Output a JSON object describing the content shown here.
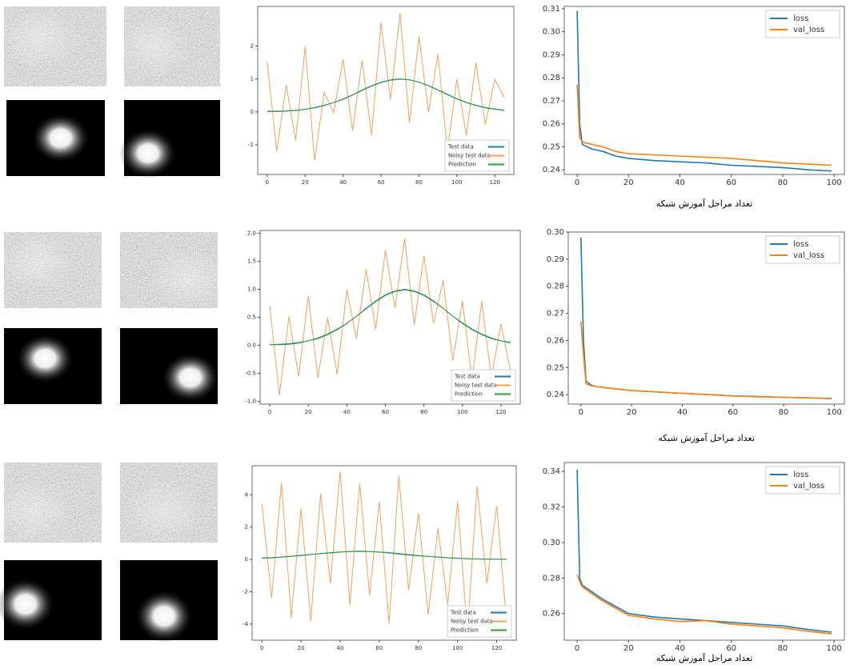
{
  "chart_data": [
    {
      "type": "line",
      "legend": "lower right",
      "xlim": [
        -5,
        130
      ],
      "ylim": [
        -1.9,
        3.2
      ],
      "xticks": [
        0,
        20,
        40,
        60,
        80,
        100,
        120
      ],
      "yticks": [
        2,
        1,
        0,
        -1
      ],
      "x": [
        0,
        5,
        10,
        15,
        20,
        25,
        30,
        35,
        40,
        45,
        50,
        55,
        60,
        65,
        70,
        75,
        80,
        85,
        90,
        95,
        100,
        105,
        110,
        115,
        120,
        125
      ],
      "series": [
        {
          "name": "Test data",
          "color": "#1f77b4",
          "values": [
            0.01,
            0.01,
            0.02,
            0.04,
            0.08,
            0.12,
            0.19,
            0.28,
            0.39,
            0.52,
            0.66,
            0.79,
            0.9,
            0.97,
            1.0,
            0.97,
            0.9,
            0.79,
            0.66,
            0.52,
            0.39,
            0.28,
            0.19,
            0.12,
            0.08,
            0.04
          ]
        },
        {
          "name": "Noisy test data",
          "color": "#f5a05a",
          "values": [
            1.51,
            -1.19,
            0.82,
            -0.86,
            1.98,
            -1.48,
            0.59,
            -0.02,
            1.59,
            -0.58,
            1.56,
            -0.71,
            2.7,
            0.37,
            3.0,
            -0.33,
            2.3,
            -0.01,
            1.76,
            -1.18,
            0.99,
            -0.72,
            1.49,
            -0.38,
            0.98,
            0.44
          ]
        },
        {
          "name": "Prediction",
          "color": "#2ca02c",
          "values": [
            0.02,
            0.02,
            0.03,
            0.05,
            0.08,
            0.13,
            0.2,
            0.28,
            0.38,
            0.51,
            0.65,
            0.78,
            0.89,
            0.96,
            0.99,
            0.97,
            0.9,
            0.8,
            0.67,
            0.53,
            0.4,
            0.29,
            0.2,
            0.13,
            0.09,
            0.05
          ]
        }
      ]
    },
    {
      "type": "line",
      "legend": "upper right",
      "xlim": [
        -5,
        104
      ],
      "ylim": [
        0.238,
        0.311
      ],
      "xticks": [
        0,
        20,
        40,
        60,
        80,
        100
      ],
      "yticks": [
        0.24,
        0.25,
        0.26,
        0.27,
        0.28,
        0.29,
        {
          "value": 0.3,
          "label": "0.30"
        },
        0.31
      ],
      "xlabel": "تعداد مراحل آموزش شبکه",
      "x": [
        0,
        1,
        2,
        4,
        6,
        10,
        15,
        20,
        30,
        40,
        50,
        60,
        70,
        80,
        90,
        99
      ],
      "series": [
        {
          "name": "loss",
          "color": "#1f77b4",
          "values": [
            0.309,
            0.26,
            0.251,
            0.25,
            0.249,
            0.248,
            0.246,
            0.245,
            0.244,
            0.2435,
            0.243,
            0.242,
            0.2415,
            0.241,
            0.24,
            0.2395
          ]
        },
        {
          "name": "val_loss",
          "color": "#ff7f0e",
          "values": [
            0.277,
            0.254,
            0.252,
            0.2515,
            0.251,
            0.25,
            0.248,
            0.247,
            0.2465,
            0.246,
            0.2455,
            0.245,
            0.244,
            0.243,
            0.2425,
            0.242
          ]
        }
      ]
    },
    {
      "type": "line",
      "legend": "lower right",
      "xlim": [
        -5,
        130
      ],
      "ylim": [
        -1.05,
        2.05
      ],
      "xticks": [
        0,
        20,
        40,
        60,
        80,
        100,
        120
      ],
      "yticks": [
        {
          "value": 2,
          "label": "2.0"
        },
        1.5,
        {
          "value": 1,
          "label": "1.0"
        },
        0.5,
        {
          "value": 0,
          "label": "0.0"
        },
        -0.5,
        {
          "value": -1,
          "label": "-1.0"
        }
      ],
      "x": [
        0,
        5,
        10,
        15,
        20,
        25,
        30,
        35,
        40,
        45,
        50,
        55,
        60,
        65,
        70,
        75,
        80,
        85,
        90,
        95,
        100,
        105,
        110,
        115,
        120,
        125
      ],
      "series": [
        {
          "name": "Test data",
          "color": "#1f77b4",
          "values": [
            0.01,
            0.01,
            0.02,
            0.04,
            0.08,
            0.12,
            0.19,
            0.28,
            0.39,
            0.52,
            0.66,
            0.79,
            0.9,
            0.97,
            1.0,
            0.97,
            0.9,
            0.79,
            0.66,
            0.52,
            0.39,
            0.28,
            0.19,
            0.12,
            0.08,
            0.04
          ]
        },
        {
          "name": "Noisy test data",
          "color": "#f5a05a",
          "values": [
            0.71,
            -0.89,
            0.52,
            -0.56,
            0.88,
            -0.58,
            0.49,
            -0.52,
            0.99,
            0.12,
            1.36,
            0.29,
            1.7,
            0.67,
            1.9,
            0.37,
            1.6,
            0.39,
            1.16,
            -0.28,
            0.79,
            -0.62,
            0.79,
            -0.58,
            0.38,
            -0.46
          ]
        },
        {
          "name": "Prediction",
          "color": "#2ca02c",
          "values": [
            0.01,
            0.02,
            0.03,
            0.05,
            0.08,
            0.13,
            0.2,
            0.29,
            0.39,
            0.52,
            0.65,
            0.78,
            0.89,
            0.96,
            0.99,
            0.96,
            0.89,
            0.78,
            0.66,
            0.52,
            0.4,
            0.29,
            0.2,
            0.13,
            0.08,
            0.05
          ]
        }
      ]
    },
    {
      "type": "line",
      "legend": "upper right",
      "xlim": [
        -5,
        104
      ],
      "ylim": [
        0.2365,
        0.3
      ],
      "xticks": [
        0,
        20,
        40,
        60,
        80,
        100
      ],
      "yticks": [
        0.24,
        0.25,
        0.26,
        0.27,
        0.28,
        0.29,
        {
          "value": 0.3,
          "label": "0.30"
        }
      ],
      "xlabel": "تعداد مراحل آموزش شبکه",
      "x": [
        0,
        1,
        2,
        4,
        6,
        10,
        15,
        20,
        30,
        40,
        50,
        60,
        70,
        80,
        90,
        99
      ],
      "series": [
        {
          "name": "loss",
          "color": "#1f77b4",
          "values": [
            0.298,
            0.26,
            0.245,
            0.2435,
            0.243,
            0.2425,
            0.242,
            0.2415,
            0.241,
            0.2405,
            0.24,
            0.2395,
            0.2393,
            0.239,
            0.2388,
            0.2385
          ]
        },
        {
          "name": "val_loss",
          "color": "#ff7f0e",
          "values": [
            0.267,
            0.255,
            0.244,
            0.2433,
            0.243,
            0.2425,
            0.242,
            0.2415,
            0.241,
            0.2405,
            0.24,
            0.2395,
            0.2392,
            0.239,
            0.2388,
            0.2386
          ]
        }
      ]
    },
    {
      "type": "line",
      "legend": "lower right",
      "xlim": [
        -5,
        130
      ],
      "ylim": [
        -5,
        5.8
      ],
      "xticks": [
        0,
        20,
        40,
        60,
        80,
        100,
        120
      ],
      "yticks": [
        4,
        2,
        0,
        -2,
        -4
      ],
      "x": [
        0,
        5,
        10,
        15,
        20,
        25,
        30,
        35,
        40,
        45,
        50,
        55,
        60,
        65,
        70,
        75,
        80,
        85,
        90,
        95,
        100,
        105,
        110,
        115,
        120,
        125
      ],
      "series": [
        {
          "name": "Test data",
          "color": "#1f77b4",
          "values": [
            0.07,
            0.1,
            0.14,
            0.19,
            0.24,
            0.3,
            0.36,
            0.42,
            0.46,
            0.49,
            0.5,
            0.49,
            0.46,
            0.42,
            0.36,
            0.3,
            0.24,
            0.19,
            0.14,
            0.1,
            0.07,
            0.04,
            0.03,
            0.02,
            0.01,
            0.01
          ]
        },
        {
          "name": "Noisy test data",
          "color": "#f5a05a",
          "values": [
            3.47,
            -2.4,
            4.74,
            -3.61,
            3.14,
            -3.8,
            4.06,
            -1.48,
            5.46,
            -2.81,
            4.7,
            -2.21,
            3.56,
            -3.98,
            5.16,
            -1.9,
            2.84,
            -3.41,
            1.94,
            -2.8,
            3.57,
            -4.56,
            4.53,
            -1.48,
            3.31,
            -3.79
          ]
        },
        {
          "name": "Prediction",
          "color": "#2ca02c",
          "values": [
            0.1,
            0.12,
            0.15,
            0.2,
            0.26,
            0.31,
            0.35,
            0.4,
            0.45,
            0.5,
            0.52,
            0.5,
            0.45,
            0.4,
            0.33,
            0.27,
            0.22,
            0.18,
            0.15,
            0.11,
            0.08,
            0.05,
            0.03,
            0.02,
            0.02,
            0.01
          ]
        }
      ]
    },
    {
      "type": "line",
      "legend": "upper right",
      "xlim": [
        -5,
        104
      ],
      "ylim": [
        0.245,
        0.345
      ],
      "xticks": [
        0,
        20,
        40,
        60,
        80,
        100
      ],
      "yticks": [
        0.26,
        0.28,
        {
          "value": 0.3,
          "label": "0.30"
        },
        0.32,
        0.34
      ],
      "xlabel": "تعداد مراحل آموزش شبکه",
      "x": [
        0,
        1,
        2,
        4,
        6,
        10,
        15,
        20,
        30,
        40,
        50,
        60,
        70,
        80,
        90,
        99
      ],
      "series": [
        {
          "name": "loss",
          "color": "#1f77b4",
          "values": [
            0.341,
            0.28,
            0.276,
            0.274,
            0.272,
            0.268,
            0.264,
            0.26,
            0.258,
            0.257,
            0.256,
            0.255,
            0.254,
            0.253,
            0.251,
            0.2495
          ]
        },
        {
          "name": "val_loss",
          "color": "#ff7f0e",
          "values": [
            0.282,
            0.278,
            0.275,
            0.273,
            0.271,
            0.267,
            0.263,
            0.259,
            0.257,
            0.2555,
            0.256,
            0.254,
            0.253,
            0.252,
            0.25,
            0.2485
          ]
        }
      ]
    }
  ]
}
